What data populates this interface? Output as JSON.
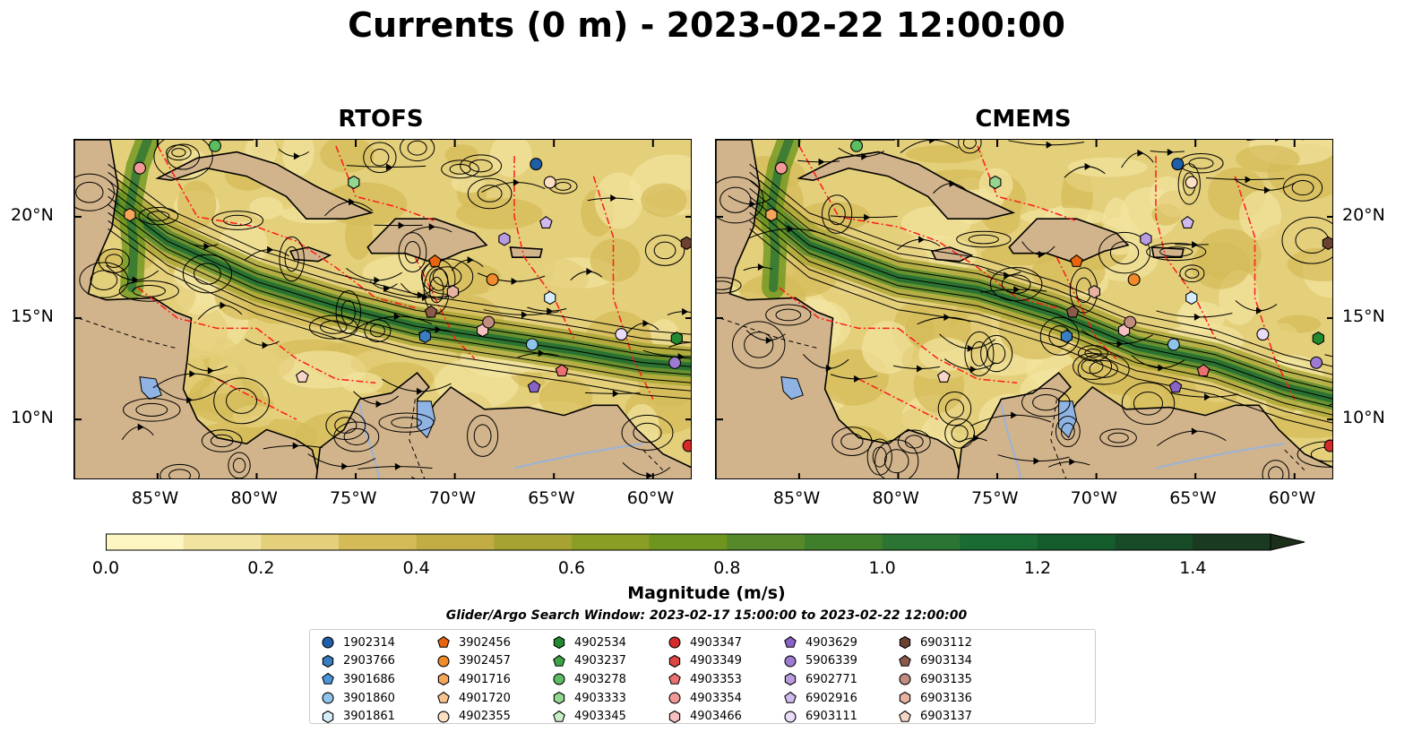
{
  "title": "Currents (0 m) - 2023-02-22 12:00:00",
  "panels": [
    {
      "title": "RTOFS"
    },
    {
      "title": "CMEMS"
    }
  ],
  "axes": {
    "lon_ticks": [
      "85°W",
      "80°W",
      "75°W",
      "70°W",
      "65°W",
      "60°W"
    ],
    "lat_ticks": [
      "20°N",
      "15°N",
      "10°N"
    ],
    "lon_range": [
      -89.2,
      -58.0
    ],
    "lat_range": [
      7.0,
      23.8
    ]
  },
  "colorbar": {
    "label": "Magnitude (m/s)",
    "ticks": [
      "0.0",
      "0.2",
      "0.4",
      "0.6",
      "0.8",
      "1.0",
      "1.2",
      "1.4"
    ],
    "range": [
      0.0,
      1.5
    ],
    "extend": "max",
    "colors": [
      "#fdf6c3",
      "#f2e4a0",
      "#e4cf7b",
      "#d4bb58",
      "#c2ad45",
      "#a6a332",
      "#8a9d24",
      "#6e961f",
      "#55892a",
      "#3f7f2b",
      "#2c7434",
      "#1a6a33",
      "#145c2c",
      "#174a27",
      "#1a3a21",
      "#1d2e1a"
    ]
  },
  "search_window": "Glider/Argo Search Window: 2023-02-17 15:00:00 to 2023-02-22 12:00:00",
  "legend": [
    {
      "id": "1902314",
      "marker": "circle",
      "color": "#1f5fa8"
    },
    {
      "id": "2903766",
      "marker": "hexagon",
      "color": "#3a7dc0"
    },
    {
      "id": "3901686",
      "marker": "pentagon",
      "color": "#4b96d8"
    },
    {
      "id": "3901860",
      "marker": "circle",
      "color": "#8fc4ea"
    },
    {
      "id": "3901861",
      "marker": "hexagon",
      "color": "#d7ecf9"
    },
    {
      "id": "3902456",
      "marker": "pentagon",
      "color": "#e8650e"
    },
    {
      "id": "3902457",
      "marker": "circle",
      "color": "#f08a2a"
    },
    {
      "id": "4901716",
      "marker": "hexagon",
      "color": "#f6a65a"
    },
    {
      "id": "4901720",
      "marker": "pentagon",
      "color": "#f9c38f"
    },
    {
      "id": "4902355",
      "marker": "circle",
      "color": "#fde0c4"
    },
    {
      "id": "4902534",
      "marker": "hexagon",
      "color": "#238b2f"
    },
    {
      "id": "4903237",
      "marker": "pentagon",
      "color": "#3ea547"
    },
    {
      "id": "4903278",
      "marker": "circle",
      "color": "#5bbd62"
    },
    {
      "id": "4903333",
      "marker": "hexagon",
      "color": "#93d68f"
    },
    {
      "id": "4903345",
      "marker": "pentagon",
      "color": "#c9f0c4"
    },
    {
      "id": "4903347",
      "marker": "circle",
      "color": "#d62a2a"
    },
    {
      "id": "4903349",
      "marker": "hexagon",
      "color": "#e04545"
    },
    {
      "id": "4903353",
      "marker": "pentagon",
      "color": "#eb7070"
    },
    {
      "id": "4903354",
      "marker": "circle",
      "color": "#f29898"
    },
    {
      "id": "4903466",
      "marker": "hexagon",
      "color": "#f7c0c0"
    },
    {
      "id": "4903629",
      "marker": "pentagon",
      "color": "#8a63c7"
    },
    {
      "id": "5906339",
      "marker": "circle",
      "color": "#9d7bd0"
    },
    {
      "id": "6902771",
      "marker": "hexagon",
      "color": "#b89be0"
    },
    {
      "id": "6902916",
      "marker": "pentagon",
      "color": "#d0bbee"
    },
    {
      "id": "6903111",
      "marker": "circle",
      "color": "#e8dcf8"
    },
    {
      "id": "6903112",
      "marker": "hexagon",
      "color": "#6b4232"
    },
    {
      "id": "6903134",
      "marker": "pentagon",
      "color": "#8c5a4b"
    },
    {
      "id": "6903135",
      "marker": "circle",
      "color": "#c08d80"
    },
    {
      "id": "6903136",
      "marker": "hexagon",
      "color": "#e7b2a2"
    },
    {
      "id": "6903137",
      "marker": "pentagon",
      "color": "#f7d6c8"
    }
  ],
  "floats": [
    {
      "id": "1902314",
      "lon": -65.9,
      "lat": 22.6
    },
    {
      "id": "2903766",
      "lon": -71.5,
      "lat": 14.1
    },
    {
      "id": "3901860",
      "lon": -66.1,
      "lat": 13.7
    },
    {
      "id": "3901861",
      "lon": -65.2,
      "lat": 16.0
    },
    {
      "id": "3902456",
      "lon": -71.0,
      "lat": 17.8
    },
    {
      "id": "3902457",
      "lon": -68.1,
      "lat": 16.9
    },
    {
      "id": "4901716",
      "lon": -86.4,
      "lat": 20.1
    },
    {
      "id": "4902355",
      "lon": -65.2,
      "lat": 21.7
    },
    {
      "id": "4902534",
      "lon": -58.8,
      "lat": 14.0
    },
    {
      "id": "4903278",
      "lon": -82.1,
      "lat": 23.5
    },
    {
      "id": "4903333",
      "lon": -75.1,
      "lat": 21.7
    },
    {
      "id": "4903347",
      "lon": -58.2,
      "lat": 8.7
    },
    {
      "id": "4903353",
      "lon": -64.6,
      "lat": 12.4
    },
    {
      "id": "4903354",
      "lon": -85.9,
      "lat": 22.4
    },
    {
      "id": "4903466",
      "lon": -68.6,
      "lat": 14.4
    },
    {
      "id": "4903629",
      "lon": -66.0,
      "lat": 11.6
    },
    {
      "id": "5906339",
      "lon": -58.9,
      "lat": 12.8
    },
    {
      "id": "6902771",
      "lon": -67.5,
      "lat": 18.9
    },
    {
      "id": "6902916",
      "lon": -65.4,
      "lat": 19.7
    },
    {
      "id": "6903111",
      "lon": -61.6,
      "lat": 14.2
    },
    {
      "id": "6903112",
      "lon": -58.3,
      "lat": 18.7
    },
    {
      "id": "6903134",
      "lon": -71.2,
      "lat": 15.3
    },
    {
      "id": "6903135",
      "lon": -68.3,
      "lat": 14.8
    },
    {
      "id": "6903136",
      "lon": -70.1,
      "lat": 16.3
    },
    {
      "id": "6903137",
      "lon": -77.7,
      "lat": 12.1
    }
  ]
}
